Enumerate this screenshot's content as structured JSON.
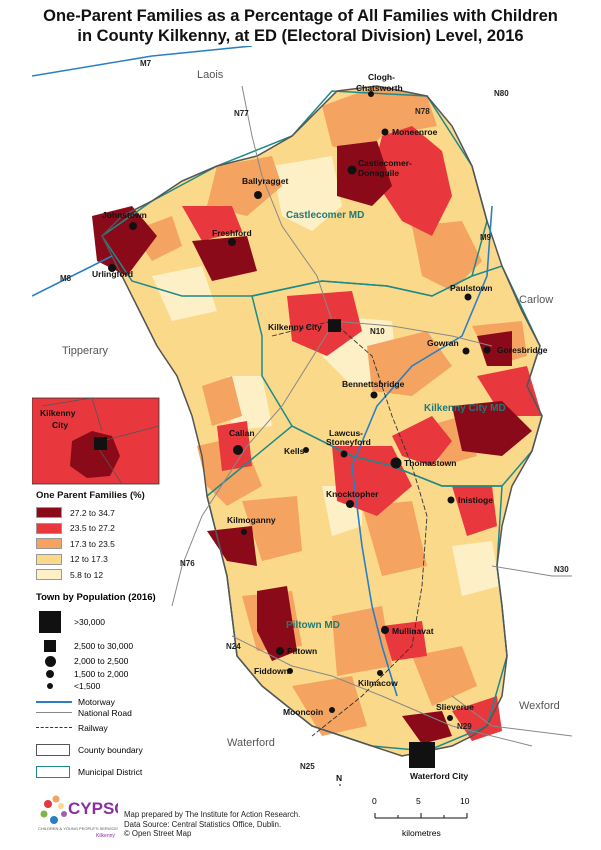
{
  "title_line1": "One-Parent Families as a Percentage of All Families with Children",
  "title_line2": "in County Kilkenny, at ED (Electoral Division) Level, 2016",
  "counties": [
    "Laois",
    "Carlow",
    "Tipperary",
    "Wexford",
    "Waterford"
  ],
  "municipal_districts": [
    "Castlecomer MD",
    "Kilkenny City MD",
    "Piltown MD"
  ],
  "roads": [
    "M7",
    "N77",
    "N78",
    "N80",
    "M9",
    "M8",
    "N10",
    "N76",
    "N30",
    "N24",
    "N29",
    "N25"
  ],
  "towns": [
    "Clogh-\nChatsworth",
    "Moneenroe",
    "Castlecomer-\nDonaguile",
    "Ballyragget",
    "Johnstown",
    "Freshford",
    "Urlingford",
    "Paulstown",
    "Kilkenny City",
    "Gowran",
    "Goresbridge",
    "Bennettsbridge",
    "Callan",
    "Lawcus-\nStoneyford",
    "Kells",
    "Thomastown",
    "Knocktopher",
    "Inistioge",
    "Kilmoganny",
    "Mullinavat",
    "Piltown",
    "Fiddown",
    "Kilmacow",
    "Mooncoin",
    "Slieverue",
    "Waterford City"
  ],
  "inset_label": "Kilkenny\nCity",
  "legend": {
    "title": "One Parent Families (%)",
    "classes": [
      {
        "label": "27.2  to  34.7",
        "color": "#8b0a1a"
      },
      {
        "label": "23.5  to  27.2",
        "color": "#e8383d"
      },
      {
        "label": "17.3  to  23.5",
        "color": "#f4a460"
      },
      {
        "label": "12       to  17.3",
        "color": "#fbd98a"
      },
      {
        "label": "5.8  to  12",
        "color": "#fdefc6"
      }
    ]
  },
  "population_legend": {
    "title": "Town by Population (2016)",
    "items": [
      ">30,000",
      "2,500  to  30,000",
      "2,000  to    2,500",
      "1,500  to    2,000",
      "<1,500"
    ]
  },
  "line_legend": {
    "motorway": "Motorway",
    "national_road": "National Road",
    "railway": "Railway",
    "county_boundary": "County boundary",
    "municipal_district": "Municipal District"
  },
  "scale": {
    "zero": "0",
    "five": "5",
    "ten": "10",
    "unit": "kilometres"
  },
  "credits": {
    "line1": "Map prepared by The Institute for Action Research.",
    "line2": "Data Source: Central Statistics Office, Dublin.",
    "line3": "© Open Street Map"
  },
  "logo": {
    "name": "CYPSC",
    "sub": "CHILDREN & YOUNG PEOPLE'S SERVICES COMMITTEES",
    "place": "Kilkenny"
  },
  "north": "N",
  "colors": {
    "c1": "#8b0a1a",
    "c2": "#e8383d",
    "c3": "#f4a460",
    "c4": "#fbd98a",
    "c5": "#fdefc6",
    "motorway": "#2a7fc4",
    "md": "#1d8a8a"
  }
}
